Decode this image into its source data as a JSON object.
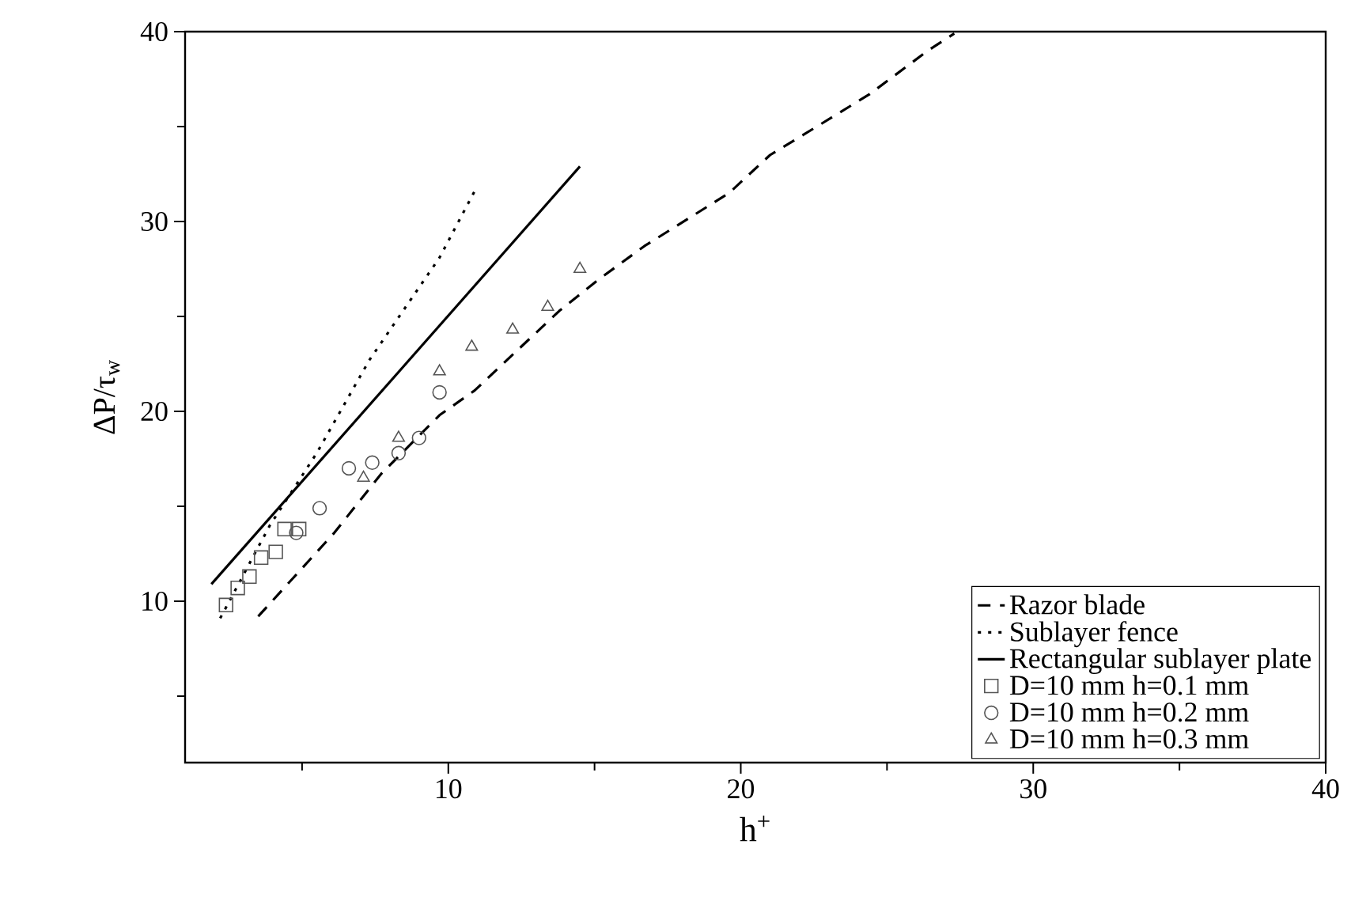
{
  "chart_data": {
    "type": "line",
    "xlabel": "h$^{+}$",
    "ylabel": "ΔP/τ$_{w}$",
    "xlim": [
      1,
      40
    ],
    "ylim": [
      1.5,
      40
    ],
    "xticks": [
      {
        "value": 5,
        "label": null
      },
      10,
      {
        "value": 15,
        "label": null
      },
      20,
      {
        "value": 25,
        "label": null
      },
      30,
      {
        "value": 35,
        "label": null
      },
      40
    ],
    "yticks": [
      {
        "value": 5,
        "label": null
      },
      10,
      {
        "value": 15,
        "label": null
      },
      20,
      {
        "value": 25,
        "label": null
      },
      30,
      {
        "value": 35,
        "label": null
      },
      40
    ],
    "legend": "bottom right",
    "grid": false,
    "series": [
      {
        "name": "Razor blade",
        "line_style": "dashed",
        "color": "#000000",
        "x": [
          3.5,
          6.1,
          7.7,
          9.7,
          10.9,
          13.8,
          15.1,
          16.7,
          19.6,
          21.0,
          22.6,
          24.4,
          26.4,
          27.3
        ],
        "values": [
          9.2,
          13.6,
          16.7,
          19.8,
          21.1,
          25.3,
          26.9,
          28.7,
          31.5,
          33.5,
          35.0,
          36.7,
          39.0,
          39.9
        ]
      },
      {
        "name": "Sublayer fence",
        "line_style": "dotted",
        "color": "#000000",
        "x": [
          2.2,
          3.9,
          5.5,
          7.3,
          9.7,
          10.9
        ],
        "values": [
          9.1,
          14.0,
          17.8,
          22.7,
          28.1,
          31.6
        ]
      },
      {
        "name": "Rectangular sublayer plate",
        "line_style": "solid",
        "color": "#000000",
        "x": [
          1.9,
          14.5
        ],
        "values": [
          10.9,
          32.9
        ]
      },
      {
        "name": "D=10 mm h=0.1 mm",
        "type": "scatter",
        "marker": "square",
        "color": "#555555",
        "x": [
          2.4,
          2.8,
          3.2,
          3.6,
          4.1,
          4.4,
          4.9
        ],
        "values": [
          9.8,
          10.7,
          11.3,
          12.3,
          12.6,
          13.8,
          13.8
        ]
      },
      {
        "name": "D=10 mm h=0.2 mm",
        "type": "scatter",
        "marker": "circle",
        "color": "#555555",
        "x": [
          4.8,
          5.6,
          6.6,
          7.4,
          8.3,
          9.0,
          9.7
        ],
        "values": [
          13.6,
          14.9,
          17.0,
          17.3,
          17.8,
          18.6,
          21.0
        ]
      },
      {
        "name": "D=10 mm h=0.3 mm",
        "type": "scatter",
        "marker": "triangle",
        "color": "#555555",
        "x": [
          7.1,
          8.3,
          9.7,
          10.8,
          12.2,
          13.4,
          14.5
        ],
        "values": [
          16.5,
          18.6,
          22.1,
          23.4,
          24.3,
          25.5,
          27.5
        ]
      }
    ]
  }
}
